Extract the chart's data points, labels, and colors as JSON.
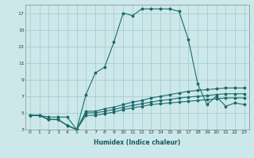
{
  "xlabel": "Humidex (Indice chaleur)",
  "ylabel": "",
  "bg_color": "#cde8ea",
  "grid_color": "#a0c8cc",
  "line_color": "#1a6b6b",
  "xlim": [
    -0.5,
    23.5
  ],
  "ylim": [
    3,
    18
  ],
  "xticks": [
    0,
    1,
    2,
    3,
    4,
    5,
    6,
    7,
    8,
    9,
    10,
    11,
    12,
    13,
    14,
    15,
    16,
    17,
    18,
    19,
    20,
    21,
    22,
    23
  ],
  "yticks": [
    3,
    5,
    7,
    9,
    11,
    13,
    15,
    17
  ],
  "line1_x": [
    0,
    1,
    2,
    3,
    4,
    5,
    6,
    7,
    8,
    9,
    10,
    11,
    12,
    13,
    14,
    15,
    16,
    17,
    18,
    19,
    20,
    21,
    22,
    23
  ],
  "line1_y": [
    4.7,
    4.7,
    4.5,
    4.5,
    4.5,
    3.0,
    7.2,
    9.8,
    10.5,
    13.5,
    17.0,
    16.7,
    17.5,
    17.5,
    17.5,
    17.5,
    17.2,
    13.8,
    8.5,
    6.0,
    7.0,
    5.8,
    6.2,
    6.0
  ],
  "line2_x": [
    0,
    1,
    2,
    3,
    4,
    5,
    6,
    7,
    8,
    9,
    10,
    11,
    12,
    13,
    14,
    15,
    16,
    17,
    18,
    19,
    20,
    21,
    22,
    23
  ],
  "line2_y": [
    4.7,
    4.7,
    4.2,
    4.2,
    3.5,
    3.0,
    5.2,
    5.2,
    5.5,
    5.7,
    6.0,
    6.3,
    6.5,
    6.8,
    7.0,
    7.2,
    7.4,
    7.6,
    7.7,
    7.8,
    7.9,
    8.0,
    8.0,
    8.0
  ],
  "line3_x": [
    0,
    1,
    2,
    3,
    4,
    5,
    6,
    7,
    8,
    9,
    10,
    11,
    12,
    13,
    14,
    15,
    16,
    17,
    18,
    19,
    20,
    21,
    22,
    23
  ],
  "line3_y": [
    4.7,
    4.7,
    4.2,
    4.2,
    3.5,
    3.0,
    5.0,
    5.0,
    5.2,
    5.4,
    5.7,
    5.9,
    6.1,
    6.3,
    6.5,
    6.6,
    6.8,
    6.9,
    7.0,
    7.1,
    7.2,
    7.3,
    7.3,
    7.3
  ],
  "line4_x": [
    0,
    1,
    2,
    3,
    4,
    5,
    6,
    7,
    8,
    9,
    10,
    11,
    12,
    13,
    14,
    15,
    16,
    17,
    18,
    19,
    20,
    21,
    22,
    23
  ],
  "line4_y": [
    4.7,
    4.7,
    4.2,
    4.2,
    3.5,
    3.0,
    4.7,
    4.7,
    4.9,
    5.1,
    5.4,
    5.6,
    5.8,
    6.0,
    6.1,
    6.2,
    6.3,
    6.4,
    6.5,
    6.6,
    6.7,
    6.8,
    6.8,
    6.8
  ]
}
